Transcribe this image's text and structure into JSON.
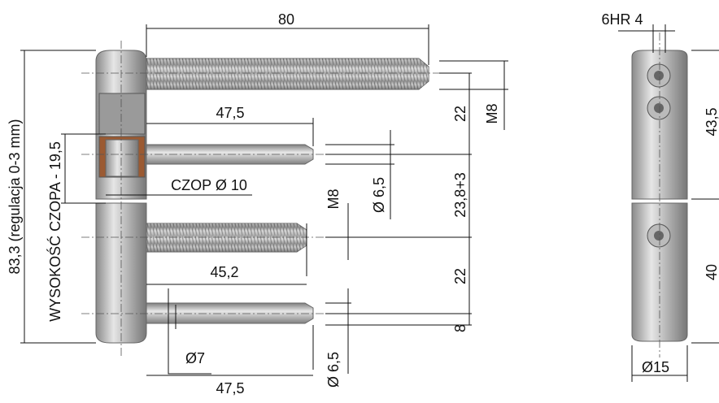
{
  "dimensions": [
    "80",
    "6HR 4",
    "47,5",
    "22",
    "M8",
    "43,5",
    "83,3 (regulacja 0-3 mm)",
    "WYSOKOŚĆ CZOPA - 19,5",
    "CZOP Ø 10",
    "Ø 6,5",
    "23,8+3",
    "M8",
    "45,2",
    "22",
    "40",
    "8",
    "Ø7",
    "Ø 6,5",
    "47,5",
    "Ø15"
  ]
}
